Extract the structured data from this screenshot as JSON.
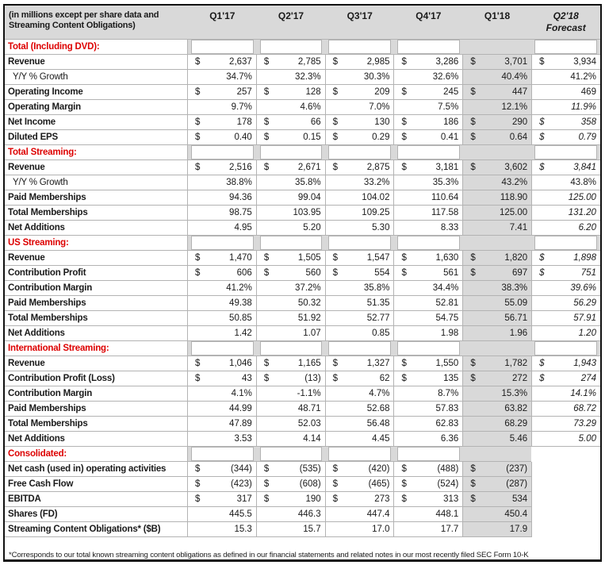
{
  "colors": {
    "section_red": "#dd0000",
    "header_gray": "#d9d9d9",
    "grid_line": "#b3b3b3",
    "q1_18_highlight": "#d9d9d9"
  },
  "table": {
    "header": {
      "label_line1": "(in millions except per share data and",
      "label_line2": "Streaming Content Obligations)",
      "columns": [
        "Q1'17",
        "Q2'17",
        "Q3'17",
        "Q4'17",
        "Q1'18",
        "Q2'18"
      ],
      "forecast_sub": "Forecast",
      "forecast_col_index": 5,
      "highlight_col_index": 4
    },
    "rows": [
      {
        "t": "s",
        "l": "Total (Including DVD):"
      },
      {
        "t": "d",
        "l": "Revenue",
        "c": [
          {
            "v": "2,637",
            "d": 1
          },
          {
            "v": "2,785",
            "d": 1
          },
          {
            "v": "2,985",
            "d": 1
          },
          {
            "v": "3,286",
            "d": 1
          },
          {
            "v": "3,701",
            "d": 1
          },
          {
            "v": "3,934",
            "d": 1
          }
        ]
      },
      {
        "t": "d",
        "l": "Y/Y % Growth",
        "n": 1,
        "c": [
          {
            "v": "34.7%"
          },
          {
            "v": "32.3%"
          },
          {
            "v": "30.3%"
          },
          {
            "v": "32.6%"
          },
          {
            "v": "40.4%"
          },
          {
            "v": "41.2%"
          }
        ]
      },
      {
        "t": "d",
        "l": "Operating Income",
        "c": [
          {
            "v": "257",
            "d": 1
          },
          {
            "v": "128",
            "d": 1
          },
          {
            "v": "209",
            "d": 1
          },
          {
            "v": "245",
            "d": 1
          },
          {
            "v": "447",
            "d": 1
          },
          {
            "v": "469"
          }
        ]
      },
      {
        "t": "d",
        "l": "Operating Margin",
        "c": [
          {
            "v": "9.7%"
          },
          {
            "v": "4.6%"
          },
          {
            "v": "7.0%"
          },
          {
            "v": "7.5%"
          },
          {
            "v": "12.1%"
          },
          {
            "v": "11.9%",
            "i": 1
          }
        ]
      },
      {
        "t": "d",
        "l": "Net Income",
        "c": [
          {
            "v": "178",
            "d": 1
          },
          {
            "v": "66",
            "d": 1
          },
          {
            "v": "130",
            "d": 1
          },
          {
            "v": "186",
            "d": 1
          },
          {
            "v": "290",
            "d": 1
          },
          {
            "v": "358",
            "d": 1,
            "i": 1
          }
        ]
      },
      {
        "t": "d",
        "l": "Diluted EPS",
        "c": [
          {
            "v": "0.40",
            "d": 1
          },
          {
            "v": "0.15",
            "d": 1
          },
          {
            "v": "0.29",
            "d": 1
          },
          {
            "v": "0.41",
            "d": 1
          },
          {
            "v": "0.64",
            "d": 1
          },
          {
            "v": "0.79",
            "d": 1,
            "i": 1
          }
        ]
      },
      {
        "t": "s",
        "l": "Total Streaming:"
      },
      {
        "t": "d",
        "l": "Revenue",
        "c": [
          {
            "v": "2,516",
            "d": 1
          },
          {
            "v": "2,671",
            "d": 1
          },
          {
            "v": "2,875",
            "d": 1
          },
          {
            "v": "3,181",
            "d": 1
          },
          {
            "v": "3,602",
            "d": 1
          },
          {
            "v": "3,841",
            "d": 1,
            "i": 1
          }
        ]
      },
      {
        "t": "d",
        "l": "Y/Y % Growth",
        "n": 1,
        "c": [
          {
            "v": "38.8%"
          },
          {
            "v": "35.8%"
          },
          {
            "v": "33.2%"
          },
          {
            "v": "35.3%"
          },
          {
            "v": "43.2%"
          },
          {
            "v": "43.8%"
          }
        ]
      },
      {
        "t": "d",
        "l": "Paid Memberships",
        "c": [
          {
            "v": "94.36"
          },
          {
            "v": "99.04"
          },
          {
            "v": "104.02"
          },
          {
            "v": "110.64"
          },
          {
            "v": "118.90"
          },
          {
            "v": "125.00",
            "i": 1
          }
        ]
      },
      {
        "t": "d",
        "l": "Total Memberships",
        "c": [
          {
            "v": "98.75"
          },
          {
            "v": "103.95"
          },
          {
            "v": "109.25"
          },
          {
            "v": "117.58"
          },
          {
            "v": "125.00"
          },
          {
            "v": "131.20",
            "i": 1
          }
        ]
      },
      {
        "t": "d",
        "l": "Net Additions",
        "c": [
          {
            "v": "4.95"
          },
          {
            "v": "5.20"
          },
          {
            "v": "5.30"
          },
          {
            "v": "8.33"
          },
          {
            "v": "7.41"
          },
          {
            "v": "6.20",
            "i": 1
          }
        ]
      },
      {
        "t": "s",
        "l": "US Streaming:"
      },
      {
        "t": "d",
        "l": "Revenue",
        "c": [
          {
            "v": "1,470",
            "d": 1
          },
          {
            "v": "1,505",
            "d": 1
          },
          {
            "v": "1,547",
            "d": 1
          },
          {
            "v": "1,630",
            "d": 1
          },
          {
            "v": "1,820",
            "d": 1
          },
          {
            "v": "1,898",
            "d": 1,
            "i": 1
          }
        ]
      },
      {
        "t": "d",
        "l": "Contribution Profit",
        "c": [
          {
            "v": "606",
            "d": 1
          },
          {
            "v": "560",
            "d": 1
          },
          {
            "v": "554",
            "d": 1
          },
          {
            "v": "561",
            "d": 1
          },
          {
            "v": "697",
            "d": 1
          },
          {
            "v": "751",
            "d": 1,
            "i": 1
          }
        ]
      },
      {
        "t": "d",
        "l": "Contribution Margin",
        "c": [
          {
            "v": "41.2%"
          },
          {
            "v": "37.2%"
          },
          {
            "v": "35.8%"
          },
          {
            "v": "34.4%"
          },
          {
            "v": "38.3%"
          },
          {
            "v": "39.6%",
            "i": 1
          }
        ]
      },
      {
        "t": "d",
        "l": "Paid Memberships",
        "c": [
          {
            "v": "49.38"
          },
          {
            "v": "50.32"
          },
          {
            "v": "51.35"
          },
          {
            "v": "52.81"
          },
          {
            "v": "55.09"
          },
          {
            "v": "56.29",
            "i": 1
          }
        ]
      },
      {
        "t": "d",
        "l": "Total Memberships",
        "c": [
          {
            "v": "50.85"
          },
          {
            "v": "51.92"
          },
          {
            "v": "52.77"
          },
          {
            "v": "54.75"
          },
          {
            "v": "56.71"
          },
          {
            "v": "57.91",
            "i": 1
          }
        ]
      },
      {
        "t": "d",
        "l": "Net Additions",
        "c": [
          {
            "v": "1.42"
          },
          {
            "v": "1.07"
          },
          {
            "v": "0.85"
          },
          {
            "v": "1.98"
          },
          {
            "v": "1.96"
          },
          {
            "v": "1.20",
            "i": 1
          }
        ]
      },
      {
        "t": "s",
        "l": "International Streaming:"
      },
      {
        "t": "d",
        "l": "Revenue",
        "c": [
          {
            "v": "1,046",
            "d": 1
          },
          {
            "v": "1,165",
            "d": 1
          },
          {
            "v": "1,327",
            "d": 1
          },
          {
            "v": "1,550",
            "d": 1
          },
          {
            "v": "1,782",
            "d": 1
          },
          {
            "v": "1,943",
            "d": 1,
            "i": 1
          }
        ]
      },
      {
        "t": "d",
        "l": "Contribution Profit (Loss)",
        "c": [
          {
            "v": "43",
            "d": 1
          },
          {
            "v": "(13)",
            "d": 1
          },
          {
            "v": "62",
            "d": 1
          },
          {
            "v": "135",
            "d": 1
          },
          {
            "v": "272",
            "d": 1
          },
          {
            "v": "274",
            "d": 1,
            "i": 1
          }
        ]
      },
      {
        "t": "d",
        "l": "Contribution Margin",
        "c": [
          {
            "v": "4.1%"
          },
          {
            "v": "-1.1%"
          },
          {
            "v": "4.7%"
          },
          {
            "v": "8.7%"
          },
          {
            "v": "15.3%"
          },
          {
            "v": "14.1%",
            "i": 1
          }
        ]
      },
      {
        "t": "d",
        "l": "Paid Memberships",
        "c": [
          {
            "v": "44.99"
          },
          {
            "v": "48.71"
          },
          {
            "v": "52.68"
          },
          {
            "v": "57.83"
          },
          {
            "v": "63.82"
          },
          {
            "v": "68.72",
            "i": 1
          }
        ]
      },
      {
        "t": "d",
        "l": "Total Memberships",
        "c": [
          {
            "v": "47.89"
          },
          {
            "v": "52.03"
          },
          {
            "v": "56.48"
          },
          {
            "v": "62.83"
          },
          {
            "v": "68.29"
          },
          {
            "v": "73.29",
            "i": 1
          }
        ]
      },
      {
        "t": "d",
        "l": "Net Additions",
        "c": [
          {
            "v": "3.53"
          },
          {
            "v": "4.14"
          },
          {
            "v": "4.45"
          },
          {
            "v": "6.36"
          },
          {
            "v": "5.46"
          },
          {
            "v": "5.00",
            "i": 1
          }
        ]
      },
      {
        "t": "s",
        "l": "Consolidated:",
        "voidLast": 1
      },
      {
        "t": "d",
        "l": "Net cash (used in) operating activities",
        "c": [
          {
            "v": "(344)",
            "d": 1
          },
          {
            "v": "(535)",
            "d": 1
          },
          {
            "v": "(420)",
            "d": 1
          },
          {
            "v": "(488)",
            "d": 1
          },
          {
            "v": "(237)",
            "d": 1
          },
          null
        ]
      },
      {
        "t": "d",
        "l": "Free Cash Flow",
        "c": [
          {
            "v": "(423)",
            "d": 1
          },
          {
            "v": "(608)",
            "d": 1
          },
          {
            "v": "(465)",
            "d": 1
          },
          {
            "v": "(524)",
            "d": 1
          },
          {
            "v": "(287)",
            "d": 1
          },
          null
        ]
      },
      {
        "t": "d",
        "l": "EBITDA",
        "c": [
          {
            "v": "317",
            "d": 1
          },
          {
            "v": "190",
            "d": 1
          },
          {
            "v": "273",
            "d": 1
          },
          {
            "v": "313",
            "d": 1
          },
          {
            "v": "534",
            "d": 1
          },
          null
        ]
      },
      {
        "t": "d",
        "l": "Shares (FD)",
        "c": [
          {
            "v": "445.5"
          },
          {
            "v": "446.3"
          },
          {
            "v": "447.4"
          },
          {
            "v": "448.1"
          },
          {
            "v": "450.4"
          },
          null
        ]
      },
      {
        "t": "d",
        "l": "Streaming Content Obligations* ($B)",
        "c": [
          {
            "v": "15.3"
          },
          {
            "v": "15.7"
          },
          {
            "v": "17.0"
          },
          {
            "v": "17.7"
          },
          {
            "v": "17.9"
          },
          null
        ]
      }
    ],
    "footnote": "*Corresponds to our total known streaming content obligations as defined in our financial statements and related notes in our most recently filed SEC Form 10-K"
  }
}
